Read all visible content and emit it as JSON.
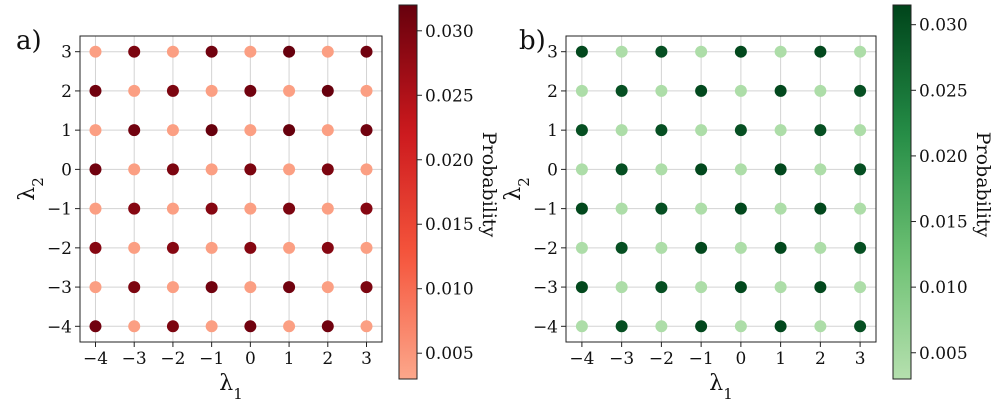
{
  "chart_data": [
    {
      "type": "scatter",
      "panel_label": "a)",
      "xlabel": "λ",
      "xlabel_sub": "1",
      "ylabel": "λ",
      "ylabel_sub": "2",
      "xlim": [
        -4.4,
        3.4
      ],
      "ylim": [
        -4.4,
        3.4
      ],
      "xticks": [
        -4,
        -3,
        -2,
        -1,
        0,
        1,
        2,
        3
      ],
      "yticks": [
        -4,
        -3,
        -2,
        -1,
        0,
        1,
        2,
        3
      ],
      "grid": true,
      "colormap": "Reds",
      "colormap_stops": [
        "#fca78b",
        "#f5553c",
        "#cb181d",
        "#67000d"
      ],
      "colorbar": {
        "label": "Probability",
        "range": [
          0.003,
          0.032
        ],
        "ticks": [
          0.005,
          0.01,
          0.015,
          0.02,
          0.025,
          0.03
        ],
        "tick_labels": [
          "0.005",
          "0.010",
          "0.015",
          "0.020",
          "0.025",
          "0.030"
        ]
      },
      "x": [
        -4,
        -3,
        -2,
        -1,
        0,
        1,
        2,
        3
      ],
      "y": [
        3,
        2,
        1,
        0,
        -1,
        -2,
        -3,
        -4
      ],
      "values": [
        [
          0.004,
          0.03,
          0.004,
          0.031,
          0.004,
          0.032,
          0.004,
          0.031
        ],
        [
          0.031,
          0.004,
          0.03,
          0.004,
          0.031,
          0.004,
          0.032,
          0.004
        ],
        [
          0.004,
          0.031,
          0.004,
          0.032,
          0.004,
          0.032,
          0.004,
          0.031
        ],
        [
          0.031,
          0.004,
          0.03,
          0.004,
          0.03,
          0.004,
          0.03,
          0.004
        ],
        [
          0.004,
          0.029,
          0.004,
          0.029,
          0.004,
          0.03,
          0.004,
          0.029
        ],
        [
          0.029,
          0.004,
          0.029,
          0.004,
          0.029,
          0.004,
          0.029,
          0.004
        ],
        [
          0.004,
          0.03,
          0.004,
          0.031,
          0.004,
          0.031,
          0.004,
          0.03
        ],
        [
          0.031,
          0.004,
          0.03,
          0.004,
          0.031,
          0.004,
          0.031,
          0.004
        ]
      ]
    },
    {
      "type": "scatter",
      "panel_label": "b)",
      "xlabel": "λ",
      "xlabel_sub": "1",
      "ylabel": "λ",
      "ylabel_sub": "2",
      "xlim": [
        -4.4,
        3.4
      ],
      "ylim": [
        -4.4,
        3.4
      ],
      "xticks": [
        -4,
        -3,
        -2,
        -1,
        0,
        1,
        2,
        3
      ],
      "yticks": [
        -4,
        -3,
        -2,
        -1,
        0,
        1,
        2,
        3
      ],
      "grid": true,
      "colormap": "Greens",
      "colormap_stops": [
        "#b5e0ae",
        "#6cc072",
        "#238b45",
        "#00441b"
      ],
      "colorbar": {
        "label": "Probability",
        "range": [
          0.003,
          0.0315
        ],
        "ticks": [
          0.005,
          0.01,
          0.015,
          0.02,
          0.025,
          0.03
        ],
        "tick_labels": [
          "0.005",
          "0.010",
          "0.015",
          "0.020",
          "0.025",
          "0.030"
        ]
      },
      "x": [
        -4,
        -3,
        -2,
        -1,
        0,
        1,
        2,
        3
      ],
      "y": [
        3,
        2,
        1,
        0,
        -1,
        -2,
        -3,
        -4
      ],
      "values": [
        [
          0.031,
          0.004,
          0.03,
          0.004,
          0.031,
          0.004,
          0.031,
          0.004
        ],
        [
          0.004,
          0.03,
          0.004,
          0.031,
          0.004,
          0.031,
          0.004,
          0.03
        ],
        [
          0.03,
          0.004,
          0.03,
          0.004,
          0.03,
          0.004,
          0.03,
          0.004
        ],
        [
          0.004,
          0.03,
          0.004,
          0.031,
          0.004,
          0.031,
          0.004,
          0.03
        ],
        [
          0.031,
          0.004,
          0.03,
          0.004,
          0.031,
          0.004,
          0.031,
          0.004
        ],
        [
          0.004,
          0.03,
          0.004,
          0.031,
          0.004,
          0.031,
          0.004,
          0.03
        ],
        [
          0.031,
          0.004,
          0.03,
          0.004,
          0.031,
          0.004,
          0.031,
          0.004
        ],
        [
          0.004,
          0.03,
          0.004,
          0.031,
          0.004,
          0.031,
          0.004,
          0.03
        ]
      ]
    }
  ]
}
